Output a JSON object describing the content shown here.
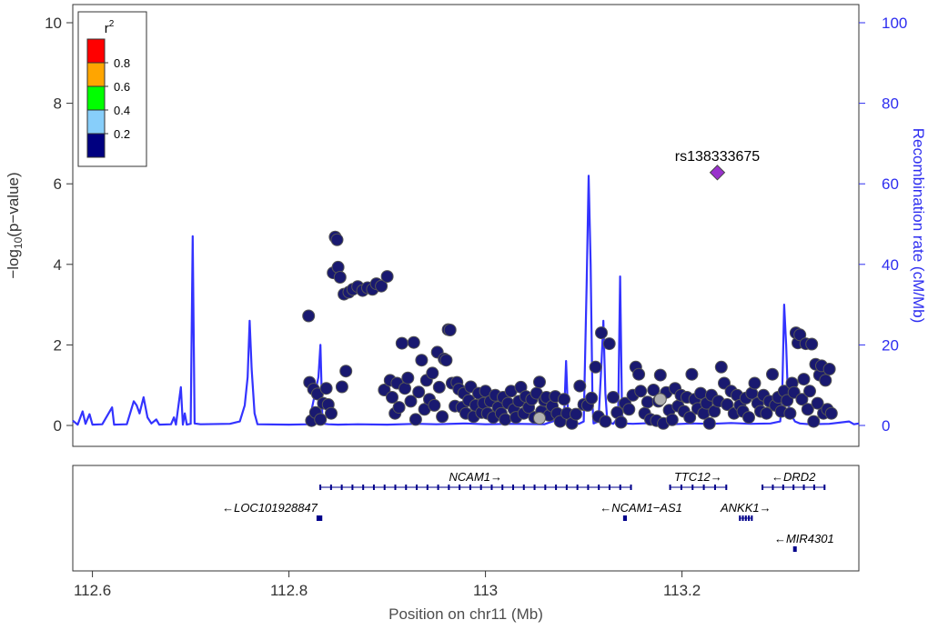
{
  "chart_data": {
    "type": "scatter",
    "x_label": "Position on chr11 (Mb)",
    "y_label_left": "-log10(p-value)",
    "y_label_right": "Recombination rate (cM/Mb)",
    "xlim": [
      112.58,
      113.38
    ],
    "ylim_left": [
      0,
      10
    ],
    "ylim_right": [
      0,
      100
    ],
    "x_ticks": [
      112.6,
      112.8,
      113,
      113.2
    ],
    "x_tick_labels": [
      "112.6",
      "112.8",
      "113",
      "113.2"
    ],
    "y_ticks_left": [
      0,
      2,
      4,
      6,
      8,
      10
    ],
    "y_tick_labels_left": [
      "0",
      "2",
      "4",
      "6",
      "8",
      "10"
    ],
    "y_ticks_right": [
      0,
      20,
      40,
      60,
      80,
      100
    ],
    "y_tick_labels_right": [
      "0",
      "20",
      "40",
      "60",
      "80",
      "100"
    ],
    "legend": {
      "title": "r2",
      "position": "top-left",
      "tick_labels": [
        "0.8",
        "0.6",
        "0.4",
        "0.2"
      ],
      "colors": [
        "#ff0000",
        "#ffa500",
        "#00ff00",
        "#87cefa",
        "#000080"
      ]
    },
    "lead_snp": {
      "name": "rs138333675",
      "x": 113.236,
      "y": 6.28,
      "color": "#9932cc"
    },
    "recombination_color": "#3333ff",
    "recombination_rate": [
      [
        112.58,
        1.2
      ],
      [
        112.585,
        0.2
      ],
      [
        112.59,
        3.5
      ],
      [
        112.593,
        0.4
      ],
      [
        112.597,
        2.8
      ],
      [
        112.6,
        0.2
      ],
      [
        112.61,
        0.3
      ],
      [
        112.62,
        4.5
      ],
      [
        112.622,
        0.2
      ],
      [
        112.635,
        0.3
      ],
      [
        112.642,
        6
      ],
      [
        112.645,
        5
      ],
      [
        112.648,
        3
      ],
      [
        112.652,
        7
      ],
      [
        112.656,
        2
      ],
      [
        112.66,
        0.5
      ],
      [
        112.665,
        1.5
      ],
      [
        112.668,
        0.2
      ],
      [
        112.68,
        0.3
      ],
      [
        112.683,
        2
      ],
      [
        112.685,
        0.2
      ],
      [
        112.69,
        9.5
      ],
      [
        112.692,
        0.2
      ],
      [
        112.694,
        3
      ],
      [
        112.696,
        0.2
      ],
      [
        112.7,
        0.4
      ],
      [
        112.702,
        47
      ],
      [
        112.704,
        0.5
      ],
      [
        112.71,
        0.3
      ],
      [
        112.74,
        0.4
      ],
      [
        112.75,
        1
      ],
      [
        112.755,
        5
      ],
      [
        112.758,
        12
      ],
      [
        112.76,
        26
      ],
      [
        112.762,
        14
      ],
      [
        112.765,
        3
      ],
      [
        112.768,
        0.3
      ],
      [
        112.8,
        0.2
      ],
      [
        112.82,
        0.3
      ],
      [
        112.83,
        12
      ],
      [
        112.832,
        20
      ],
      [
        112.834,
        2
      ],
      [
        112.836,
        0.4
      ],
      [
        112.84,
        0.3
      ],
      [
        112.85,
        0.2
      ],
      [
        112.87,
        0.3
      ],
      [
        112.9,
        0.2
      ],
      [
        112.93,
        0.4
      ],
      [
        112.95,
        0.3
      ],
      [
        112.98,
        0.5
      ],
      [
        113.0,
        0.3
      ],
      [
        113.03,
        0.4
      ],
      [
        113.06,
        0.3
      ],
      [
        113.08,
        2
      ],
      [
        113.082,
        16
      ],
      [
        113.084,
        3
      ],
      [
        113.086,
        0.5
      ],
      [
        113.095,
        0.4
      ],
      [
        113.1,
        1
      ],
      [
        113.103,
        35
      ],
      [
        113.105,
        62
      ],
      [
        113.107,
        40
      ],
      [
        113.109,
        5
      ],
      [
        113.11,
        0.5
      ],
      [
        113.115,
        1
      ],
      [
        113.118,
        15
      ],
      [
        113.12,
        26
      ],
      [
        113.122,
        8
      ],
      [
        113.124,
        1
      ],
      [
        113.13,
        0.4
      ],
      [
        113.135,
        2
      ],
      [
        113.137,
        37
      ],
      [
        113.139,
        3
      ],
      [
        113.141,
        0.5
      ],
      [
        113.15,
        0.4
      ],
      [
        113.17,
        0.6
      ],
      [
        113.19,
        0.3
      ],
      [
        113.21,
        0.5
      ],
      [
        113.23,
        0.4
      ],
      [
        113.25,
        0.6
      ],
      [
        113.27,
        0.4
      ],
      [
        113.29,
        0.5
      ],
      [
        113.3,
        1
      ],
      [
        113.302,
        8
      ],
      [
        113.304,
        30
      ],
      [
        113.306,
        20
      ],
      [
        113.308,
        6
      ],
      [
        113.31,
        3
      ],
      [
        113.315,
        1
      ],
      [
        113.32,
        0.5
      ],
      [
        113.33,
        0.3
      ],
      [
        113.35,
        0.4
      ],
      [
        113.37,
        1
      ],
      [
        113.375,
        0.3
      ],
      [
        113.38,
        0.5
      ]
    ],
    "snps": [
      [
        112.82,
        2.72
      ],
      [
        112.821,
        1.07
      ],
      [
        112.823,
        0.12
      ],
      [
        112.825,
        0.9
      ],
      [
        112.827,
        0.32
      ],
      [
        112.829,
        0.78
      ],
      [
        112.832,
        0.15
      ],
      [
        112.835,
        0.55
      ],
      [
        112.838,
        0.92
      ],
      [
        112.84,
        0.52
      ],
      [
        112.843,
        0.3
      ],
      [
        112.845,
        3.79
      ],
      [
        112.847,
        4.68
      ],
      [
        112.849,
        4.61
      ],
      [
        112.85,
        3.93
      ],
      [
        112.852,
        3.68
      ],
      [
        112.854,
        0.96
      ],
      [
        112.856,
        3.26
      ],
      [
        112.858,
        1.35
      ],
      [
        112.861,
        3.31
      ],
      [
        112.865,
        3.38
      ],
      [
        112.87,
        3.45
      ],
      [
        112.875,
        3.35
      ],
      [
        112.88,
        3.42
      ],
      [
        112.885,
        3.38
      ],
      [
        112.889,
        3.52
      ],
      [
        112.894,
        3.46
      ],
      [
        112.897,
        0.88
      ],
      [
        112.9,
        3.7
      ],
      [
        112.903,
        1.12
      ],
      [
        112.905,
        0.7
      ],
      [
        112.908,
        0.3
      ],
      [
        112.91,
        1.05
      ],
      [
        112.912,
        0.45
      ],
      [
        112.915,
        2.04
      ],
      [
        112.918,
        0.92
      ],
      [
        112.921,
        1.18
      ],
      [
        112.924,
        0.6
      ],
      [
        112.927,
        2.06
      ],
      [
        112.929,
        0.15
      ],
      [
        112.932,
        0.83
      ],
      [
        112.935,
        1.62
      ],
      [
        112.938,
        0.4
      ],
      [
        112.94,
        1.12
      ],
      [
        112.943,
        0.65
      ],
      [
        112.946,
        1.3
      ],
      [
        112.948,
        0.5
      ],
      [
        112.951,
        1.82
      ],
      [
        112.953,
        0.95
      ],
      [
        112.956,
        0.22
      ],
      [
        112.958,
        1.65
      ],
      [
        112.96,
        1.62
      ],
      [
        112.962,
        2.38
      ],
      [
        112.964,
        2.37
      ],
      [
        112.966,
        1.05
      ],
      [
        112.969,
        0.48
      ],
      [
        112.971,
        1.07
      ],
      [
        112.973,
        0.9
      ],
      [
        112.976,
        0.45
      ],
      [
        112.978,
        0.8
      ],
      [
        112.98,
        0.3
      ],
      [
        112.983,
        0.62
      ],
      [
        112.985,
        0.96
      ],
      [
        112.988,
        0.22
      ],
      [
        112.99,
        0.5
      ],
      [
        112.993,
        0.8
      ],
      [
        112.996,
        0.32
      ],
      [
        112.998,
        0.55
      ],
      [
        113.0,
        0.85
      ],
      [
        113.002,
        0.3
      ],
      [
        113.005,
        0.6
      ],
      [
        113.008,
        0.2
      ],
      [
        113.01,
        0.75
      ],
      [
        113.013,
        0.45
      ],
      [
        113.016,
        0.3
      ],
      [
        113.018,
        0.7
      ],
      [
        113.02,
        0.15
      ],
      [
        113.023,
        0.55
      ],
      [
        113.026,
        0.85
      ],
      [
        113.029,
        0.4
      ],
      [
        113.031,
        0.2
      ],
      [
        113.034,
        0.6
      ],
      [
        113.036,
        0.95
      ],
      [
        113.039,
        0.3
      ],
      [
        113.041,
        0.72
      ],
      [
        113.044,
        0.45
      ],
      [
        113.047,
        0.65
      ],
      [
        113.05,
        0.2
      ],
      [
        113.052,
        0.8
      ],
      [
        113.055,
        1.08
      ],
      [
        113.057,
        0.35
      ],
      [
        113.06,
        0.62
      ],
      [
        113.062,
        0.7
      ],
      [
        113.065,
        0.25
      ],
      [
        113.068,
        0.48
      ],
      [
        113.071,
        0.72
      ],
      [
        113.073,
        0.3
      ],
      [
        113.076,
        0.1
      ],
      [
        113.08,
        0.65
      ],
      [
        113.083,
        0.3
      ],
      [
        113.088,
        0.05
      ],
      [
        113.092,
        0.28
      ],
      [
        113.096,
        0.98
      ],
      [
        113.1,
        0.52
      ],
      [
        113.104,
        0.5
      ],
      [
        113.108,
        0.68
      ],
      [
        113.112,
        1.45
      ],
      [
        113.115,
        0.22
      ],
      [
        113.118,
        2.3
      ],
      [
        113.122,
        0.1
      ],
      [
        113.126,
        2.03
      ],
      [
        113.13,
        0.7
      ],
      [
        113.134,
        0.32
      ],
      [
        113.138,
        0.08
      ],
      [
        113.142,
        0.55
      ],
      [
        113.146,
        0.4
      ],
      [
        113.15,
        0.75
      ],
      [
        113.153,
        1.45
      ],
      [
        113.156,
        1.27
      ],
      [
        113.158,
        0.85
      ],
      [
        113.162,
        0.3
      ],
      [
        113.165,
        0.58
      ],
      [
        113.168,
        0.15
      ],
      [
        113.171,
        0.88
      ],
      [
        113.174,
        0.12
      ],
      [
        113.176,
        0.6
      ],
      [
        113.178,
        1.25
      ],
      [
        113.181,
        0.05
      ],
      [
        113.184,
        0.82
      ],
      [
        113.187,
        0.38
      ],
      [
        113.19,
        0.14
      ],
      [
        113.193,
        0.92
      ],
      [
        113.196,
        0.48
      ],
      [
        113.199,
        0.75
      ],
      [
        113.202,
        0.35
      ],
      [
        113.205,
        0.7
      ],
      [
        113.208,
        0.2
      ],
      [
        113.21,
        1.27
      ],
      [
        113.213,
        0.65
      ],
      [
        113.216,
        0.42
      ],
      [
        113.219,
        0.8
      ],
      [
        113.222,
        0.3
      ],
      [
        113.225,
        0.55
      ],
      [
        113.228,
        0.05
      ],
      [
        113.23,
        0.75
      ],
      [
        113.233,
        0.35
      ],
      [
        113.237,
        0.6
      ],
      [
        113.24,
        1.45
      ],
      [
        113.243,
        1.05
      ],
      [
        113.246,
        0.52
      ],
      [
        113.25,
        0.85
      ],
      [
        113.253,
        0.3
      ],
      [
        113.256,
        0.75
      ],
      [
        113.259,
        0.5
      ],
      [
        113.262,
        0.35
      ],
      [
        113.265,
        0.68
      ],
      [
        113.268,
        0.2
      ],
      [
        113.271,
        0.8
      ],
      [
        113.274,
        1.05
      ],
      [
        113.277,
        0.55
      ],
      [
        113.28,
        0.35
      ],
      [
        113.283,
        0.75
      ],
      [
        113.286,
        0.3
      ],
      [
        113.289,
        0.6
      ],
      [
        113.292,
        1.27
      ],
      [
        113.295,
        0.5
      ],
      [
        113.298,
        0.7
      ],
      [
        113.301,
        0.35
      ],
      [
        113.304,
        0.85
      ],
      [
        113.307,
        0.62
      ],
      [
        113.31,
        0.3
      ],
      [
        113.312,
        1.05
      ],
      [
        113.314,
        0.82
      ],
      [
        113.316,
        2.3
      ],
      [
        113.318,
        2.05
      ],
      [
        113.32,
        2.25
      ],
      [
        113.322,
        0.65
      ],
      [
        113.324,
        1.15
      ],
      [
        113.326,
        2.03
      ],
      [
        113.328,
        0.4
      ],
      [
        113.33,
        0.85
      ],
      [
        113.332,
        2.02
      ],
      [
        113.334,
        0.1
      ],
      [
        113.336,
        1.52
      ],
      [
        113.338,
        0.55
      ],
      [
        113.34,
        1.25
      ],
      [
        113.342,
        1.48
      ],
      [
        113.344,
        0.3
      ],
      [
        113.346,
        1.12
      ],
      [
        113.348,
        0.4
      ],
      [
        113.35,
        1.4
      ],
      [
        113.352,
        0.3
      ]
    ],
    "snps_light": [
      [
        113.178,
        0.65
      ],
      [
        113.055,
        0.18
      ]
    ],
    "genes": [
      {
        "name": "NCAM1",
        "label": "NCAM1→",
        "start": 112.831,
        "end": 113.149,
        "row": 1,
        "strand": "+"
      },
      {
        "name": "TTC12",
        "label": "TTC12→",
        "start": 113.187,
        "end": 113.246,
        "row": 1,
        "strand": "+"
      },
      {
        "name": "DRD2",
        "label": "←DRD2",
        "start": 113.281,
        "end": 113.346,
        "row": 1,
        "strand": "-"
      },
      {
        "name": "LOC101928847",
        "label": "←LOC101928847",
        "start": 112.829,
        "end": 112.833,
        "row": 2,
        "strand": "-"
      },
      {
        "name": "NCAM1-AS1",
        "label": "←NCAM1−AS1",
        "start": 113.141,
        "end": 113.143,
        "row": 2,
        "strand": "-"
      },
      {
        "name": "ANKK1",
        "label": "ANKK1→",
        "start": 113.258,
        "end": 113.272,
        "row": 2,
        "strand": "+"
      },
      {
        "name": "MIR4301",
        "label": "←MIR4301",
        "start": 113.314,
        "end": 113.315,
        "row": 3,
        "strand": "-"
      }
    ]
  }
}
